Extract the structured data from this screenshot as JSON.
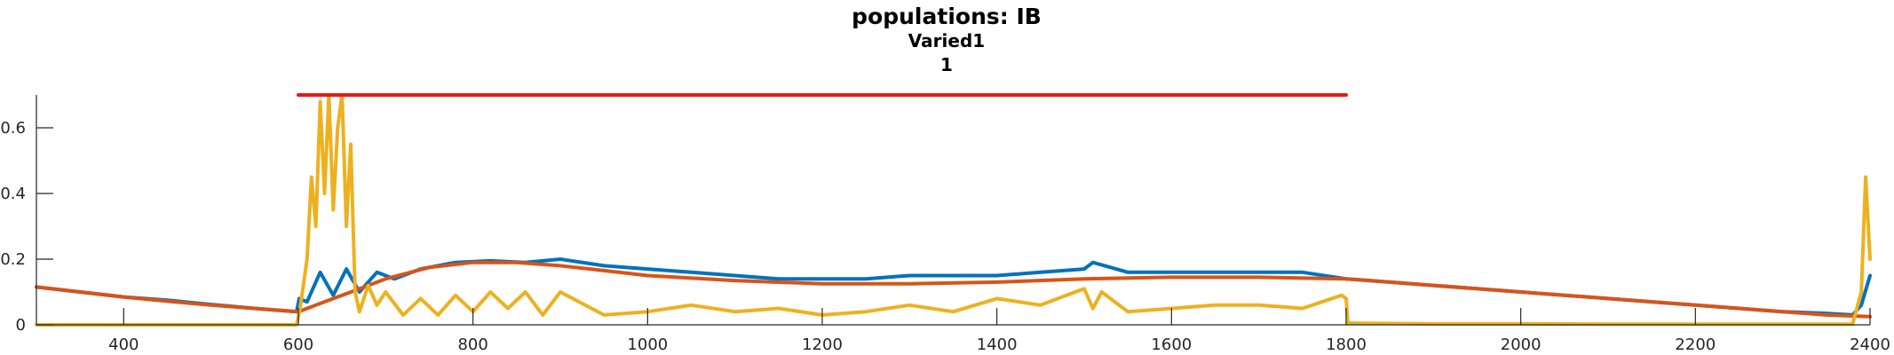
{
  "chart_data": {
    "type": "line",
    "title_lines": [
      "populations: IB",
      "Varied1",
      "1"
    ],
    "xlim": [
      300,
      2400
    ],
    "ylim": [
      0,
      0.7
    ],
    "x_ticks": [
      400,
      600,
      800,
      1000,
      1200,
      1400,
      1600,
      1800,
      2000,
      2200,
      2400
    ],
    "x_tick_labels": [
      "400",
      "600",
      "800",
      "1000",
      "1200",
      "1400",
      "1600",
      "1800",
      "2000",
      "2200",
      "2400"
    ],
    "y_ticks": [
      0,
      0.2,
      0.4,
      0.6
    ],
    "y_tick_labels": [
      "0",
      "0.2",
      "0.4",
      "0.6"
    ],
    "grid": false,
    "series": [
      {
        "color": "#0072BD",
        "x": [
          300,
          350,
          400,
          450,
          500,
          550,
          598,
          601,
          610,
          625,
          640,
          655,
          670,
          690,
          710,
          740,
          780,
          820,
          860,
          900,
          950,
          1000,
          1050,
          1100,
          1150,
          1200,
          1250,
          1300,
          1350,
          1400,
          1450,
          1500,
          1510,
          1550,
          1600,
          1650,
          1700,
          1750,
          1800,
          1850,
          1900,
          1950,
          2000,
          2050,
          2100,
          2150,
          2200,
          2250,
          2300,
          2350,
          2380,
          2390,
          2400
        ],
        "y": [
          0.115,
          0.1,
          0.085,
          0.075,
          0.062,
          0.05,
          0.04,
          0.08,
          0.07,
          0.16,
          0.09,
          0.17,
          0.1,
          0.16,
          0.14,
          0.17,
          0.19,
          0.195,
          0.19,
          0.2,
          0.18,
          0.17,
          0.16,
          0.15,
          0.14,
          0.14,
          0.14,
          0.15,
          0.15,
          0.15,
          0.16,
          0.17,
          0.19,
          0.16,
          0.16,
          0.16,
          0.16,
          0.16,
          0.14,
          0.13,
          0.12,
          0.11,
          0.1,
          0.09,
          0.08,
          0.07,
          0.06,
          0.05,
          0.04,
          0.035,
          0.03,
          0.06,
          0.15
        ]
      },
      {
        "color": "#D95319",
        "x": [
          300,
          350,
          400,
          450,
          500,
          550,
          600,
          650,
          700,
          750,
          800,
          850,
          900,
          950,
          1000,
          1100,
          1200,
          1300,
          1400,
          1500,
          1600,
          1700,
          1800,
          1900,
          2000,
          2100,
          2200,
          2300,
          2350,
          2400
        ],
        "y": [
          0.115,
          0.1,
          0.085,
          0.072,
          0.06,
          0.05,
          0.04,
          0.09,
          0.14,
          0.175,
          0.19,
          0.19,
          0.18,
          0.165,
          0.15,
          0.135,
          0.125,
          0.125,
          0.13,
          0.14,
          0.145,
          0.145,
          0.14,
          0.12,
          0.1,
          0.08,
          0.06,
          0.04,
          0.03,
          0.025
        ]
      },
      {
        "color": "#EDB120",
        "x": [
          300,
          598,
          602,
          610,
          615,
          620,
          625,
          630,
          635,
          640,
          645,
          650,
          655,
          660,
          665,
          670,
          680,
          690,
          700,
          720,
          740,
          760,
          780,
          800,
          820,
          840,
          860,
          880,
          900,
          950,
          1000,
          1050,
          1100,
          1150,
          1200,
          1250,
          1300,
          1350,
          1400,
          1450,
          1500,
          1510,
          1520,
          1550,
          1600,
          1650,
          1700,
          1750,
          1795,
          1800,
          1802,
          1900,
          2000,
          2100,
          2200,
          2300,
          2380,
          2390,
          2395,
          2400
        ],
        "y": [
          0,
          0,
          0.05,
          0.2,
          0.45,
          0.3,
          0.68,
          0.4,
          0.7,
          0.35,
          0.6,
          0.7,
          0.3,
          0.55,
          0.1,
          0.04,
          0.12,
          0.06,
          0.1,
          0.03,
          0.08,
          0.03,
          0.09,
          0.04,
          0.1,
          0.05,
          0.1,
          0.03,
          0.1,
          0.03,
          0.04,
          0.06,
          0.04,
          0.05,
          0.03,
          0.04,
          0.06,
          0.04,
          0.08,
          0.06,
          0.11,
          0.05,
          0.1,
          0.04,
          0.05,
          0.06,
          0.06,
          0.05,
          0.09,
          0.08,
          0.005,
          0.003,
          0.003,
          0.002,
          0.002,
          0.002,
          0.002,
          0.1,
          0.45,
          0.2
        ]
      },
      {
        "color": "#E41A1C",
        "x": [
          600,
          1800
        ],
        "y": [
          0.7,
          0.7
        ]
      }
    ]
  }
}
